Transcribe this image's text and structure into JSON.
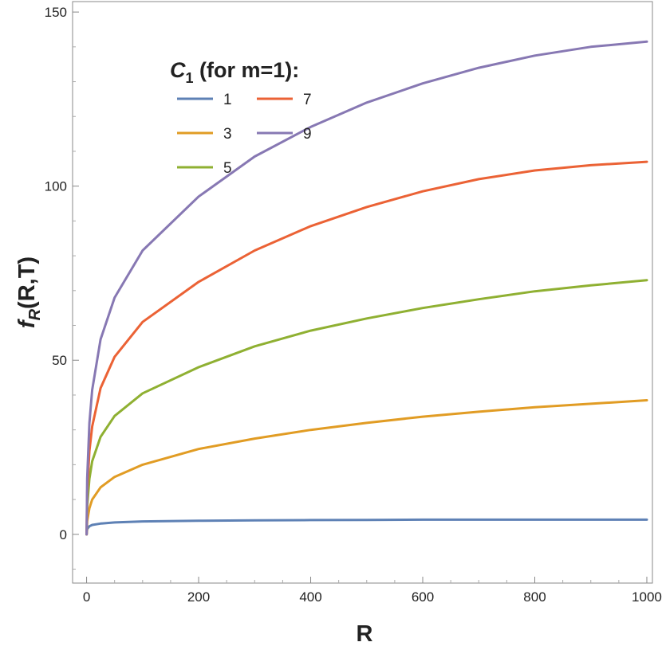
{
  "chart_data": {
    "type": "line",
    "xlabel": "R",
    "ylabel_main": "f",
    "ylabel_sub": "R",
    "ylabel_rest": "(R,T)",
    "xlim": [
      -25,
      1010
    ],
    "ylim": [
      -14,
      153
    ],
    "x_ticks": [
      0,
      200,
      400,
      600,
      800,
      1000
    ],
    "y_ticks": [
      0,
      50,
      100,
      150
    ],
    "grid": false,
    "legend": {
      "placement": "top-left",
      "title_main": "C",
      "title_sub": "1",
      "title_rest": " (for m=1):"
    },
    "x": [
      0,
      1,
      5,
      10,
      25,
      50,
      100,
      200,
      300,
      400,
      500,
      600,
      700,
      800,
      900,
      1000
    ],
    "series": [
      {
        "name": "1",
        "color": "#5e81b5",
        "values": [
          0,
          1.5,
          2.3,
          2.7,
          3.1,
          3.4,
          3.7,
          3.9,
          4.0,
          4.1,
          4.15,
          4.2,
          4.2,
          4.2,
          4.2,
          4.2
        ]
      },
      {
        "name": "3",
        "color": "#e19c24",
        "values": [
          0,
          3.8,
          7.5,
          10.0,
          13.5,
          16.5,
          20.0,
          24.5,
          27.5,
          30.0,
          32.0,
          33.8,
          35.2,
          36.5,
          37.5,
          38.5
        ]
      },
      {
        "name": "5",
        "color": "#8fb032",
        "values": [
          0,
          8.0,
          16.0,
          21.0,
          28.0,
          34.0,
          40.5,
          48.0,
          54.0,
          58.5,
          62.0,
          65.0,
          67.5,
          69.8,
          71.5,
          73.0
        ]
      },
      {
        "name": "7",
        "color": "#eb6235",
        "values": [
          0,
          12.0,
          24.0,
          31.0,
          42.0,
          51.0,
          61.0,
          72.5,
          81.5,
          88.5,
          94.0,
          98.5,
          102.0,
          104.5,
          106.0,
          107.0
        ]
      },
      {
        "name": "9",
        "color": "#8778b3",
        "values": [
          0,
          16.0,
          32.0,
          41.5,
          56.0,
          68.0,
          81.5,
          97.0,
          108.5,
          117.0,
          124.0,
          129.5,
          134.0,
          137.5,
          140.0,
          141.5
        ]
      }
    ]
  }
}
